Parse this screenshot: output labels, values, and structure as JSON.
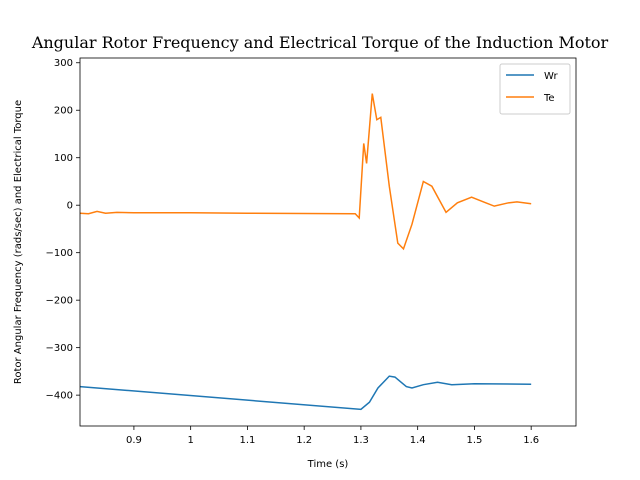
{
  "chart_data": {
    "type": "line",
    "title": "Angular Rotor Frequency and Electrical Torque of the Induction Motor",
    "x_label": "Time (s)",
    "y_label": "Rotor Angular Frequency (rads/sec) and Electrical Torque",
    "xlim": [
      0.805,
      1.679
    ],
    "ylim": [
      -465,
      310
    ],
    "xticks": [
      0.9,
      1.0,
      1.1,
      1.2,
      1.3,
      1.4,
      1.5,
      1.6
    ],
    "yticks": [
      {
        "value": -400,
        "label": "−400"
      },
      {
        "value": -300,
        "label": "−300"
      },
      {
        "value": -200,
        "label": "−200"
      },
      {
        "value": -100,
        "label": "−100"
      },
      0,
      100,
      200,
      300
    ],
    "legend": "upper right",
    "grid": false,
    "series": [
      {
        "name": "Wr",
        "color": "#1f77b4",
        "x": [
          0.805,
          1.3,
          1.315,
          1.33,
          1.35,
          1.36,
          1.38,
          1.39,
          1.41,
          1.435,
          1.46,
          1.5,
          1.6
        ],
        "values": [
          -382,
          -430,
          -415,
          -385,
          -360,
          -362,
          -382,
          -385,
          -378,
          -373,
          -378,
          -376,
          -377
        ]
      },
      {
        "name": "Te",
        "color": "#ff7f0e",
        "x": [
          0.805,
          0.82,
          0.835,
          0.85,
          0.87,
          0.9,
          1.0,
          1.1,
          1.29,
          1.297,
          1.305,
          1.31,
          1.32,
          1.328,
          1.335,
          1.35,
          1.365,
          1.375,
          1.39,
          1.41,
          1.425,
          1.45,
          1.47,
          1.495,
          1.52,
          1.535,
          1.56,
          1.575,
          1.6
        ],
        "values": [
          -17,
          -18,
          -13,
          -17,
          -15,
          -16,
          -16,
          -17,
          -18,
          -27,
          130,
          88,
          235,
          180,
          185,
          40,
          -80,
          -92,
          -40,
          50,
          40,
          -15,
          5,
          17,
          5,
          -2,
          5,
          7,
          3
        ]
      }
    ]
  }
}
